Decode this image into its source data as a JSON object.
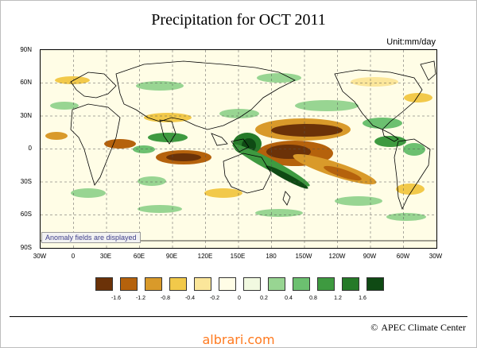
{
  "title": "Precipitation for OCT 2011",
  "unit": "Unit:mm/day",
  "note": "Anomaly fields are displayed",
  "lat_labels": [
    "90N",
    "60N",
    "30N",
    "0",
    "30S",
    "60S",
    "90S"
  ],
  "lon_labels": [
    "30W",
    "0",
    "30E",
    "60E",
    "90E",
    "120E",
    "150E",
    "180",
    "150W",
    "120W",
    "90W",
    "60W",
    "30W"
  ],
  "legend": {
    "colors": [
      "#6b3208",
      "#b5620c",
      "#d99a2a",
      "#f2c94a",
      "#fbe69a",
      "#fffde6",
      "#f1f9e0",
      "#98d592",
      "#6cc070",
      "#3e9a40",
      "#257a28",
      "#0f4a14"
    ],
    "labels": [
      "-1.6",
      "-1.2",
      "-0.8",
      "-0.4",
      "-0.2",
      "0",
      "0.2",
      "0.4",
      "0.8",
      "1.2",
      "1.6"
    ]
  },
  "credit": "APEC Climate Center",
  "credit_icon": "copyright-icon",
  "watermark": "albrari.com"
}
